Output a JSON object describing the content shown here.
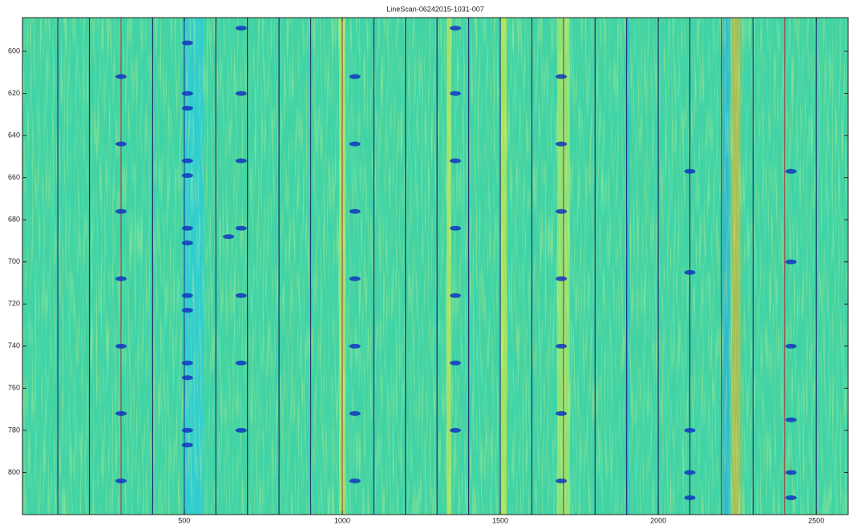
{
  "chart_data": {
    "type": "heatmap",
    "title": "LineScan-06242015-1031-007",
    "xlim": [
      -12,
      2601
    ],
    "ylim": [
      584,
      820
    ],
    "y_reversed": true,
    "xticks": [
      500,
      1000,
      1500,
      2000,
      2500
    ],
    "yticks": [
      600,
      620,
      640,
      660,
      680,
      700,
      720,
      740,
      760,
      780,
      800
    ],
    "background": "#40d3a6",
    "bands": {
      "x0": [
        500,
        990,
        1330,
        1500,
        1680,
        1895,
        2205,
        2230
      ],
      "x1": [
        560,
        1010,
        1345,
        1520,
        1720,
        1910,
        2225,
        2260
      ],
      "color": [
        "#20c8f0",
        "#e8f040",
        "#e8f040",
        "#f0f020",
        "#c8ee50",
        "#20b8f0",
        "#20a8f0",
        "#f0b020"
      ]
    },
    "lines": {
      "x": [
        100,
        200,
        300,
        400,
        500,
        600,
        700,
        800,
        900,
        1000,
        1100,
        1200,
        1300,
        1400,
        1500,
        1600,
        1700,
        1800,
        1900,
        2000,
        2100,
        2200,
        2300,
        2400,
        2500
      ],
      "color": [
        "#1e2f70",
        "#1e2f70",
        "#a04848",
        "#1e2f70",
        "#2040a0",
        "#1e2f70",
        "#1e2f70",
        "#1e2f70",
        "#1e2f70",
        "#a04848",
        "#1e2f70",
        "#1e2f70",
        "#1e2f70",
        "#1e2f70",
        "#2040a0",
        "#1e2f70",
        "#a04848",
        "#1e2f70",
        "#1e2f70",
        "#1e2f70",
        "#1e2f70",
        "#2040a0",
        "#1e2f70",
        "#a04848",
        "#1e2f70"
      ]
    },
    "spots": {
      "color": "#1236c0",
      "x": [
        300,
        300,
        300,
        300,
        300,
        300,
        300,
        1040,
        1040,
        1040,
        1040,
        1040,
        1040,
        1040,
        1693,
        1693,
        1693,
        1693,
        1693,
        1693,
        1693,
        510,
        510,
        510,
        510,
        510,
        510,
        510,
        510,
        510,
        510,
        510,
        510,
        510,
        680,
        680,
        680,
        680,
        680,
        680,
        680,
        1358,
        1358,
        1358,
        1358,
        1358,
        1358,
        1358,
        2420,
        2420,
        2420,
        2420,
        2420,
        2420,
        2100,
        2100,
        2100,
        2100,
        2100,
        640
      ],
      "y": [
        612,
        644,
        676,
        708,
        740,
        772,
        804,
        612,
        644,
        676,
        708,
        740,
        772,
        804,
        612,
        644,
        676,
        708,
        740,
        772,
        804,
        596,
        620,
        627,
        652,
        659,
        684,
        691,
        716,
        723,
        748,
        755,
        780,
        787,
        589,
        620,
        652,
        684,
        716,
        748,
        780,
        589,
        620,
        652,
        684,
        716,
        748,
        780,
        657,
        700,
        740,
        775,
        800,
        812,
        657,
        705,
        780,
        800,
        812,
        688
      ]
    }
  }
}
